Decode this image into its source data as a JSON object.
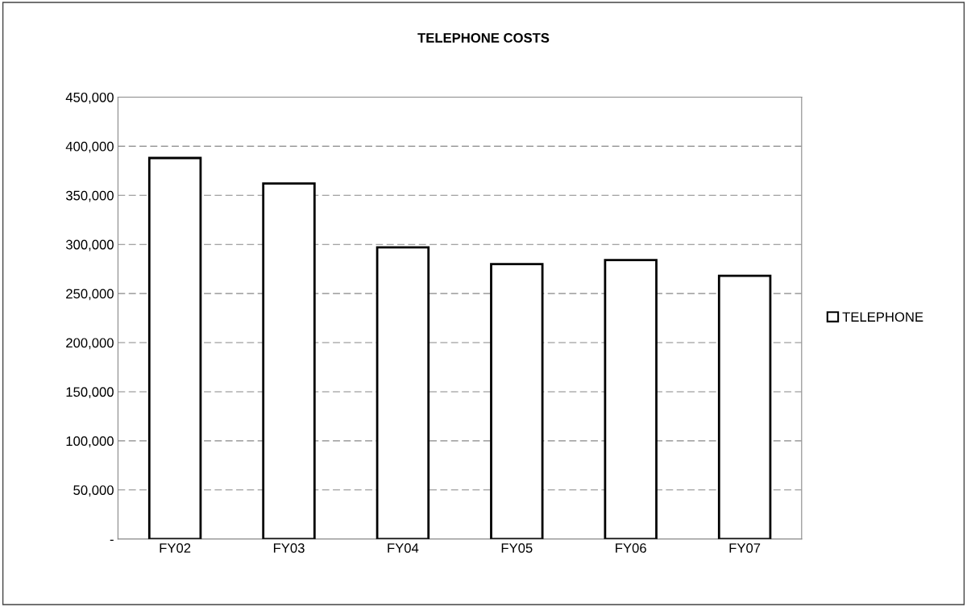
{
  "chart_data": {
    "type": "bar",
    "title": "TELEPHONE COSTS",
    "categories": [
      "FY02",
      "FY03",
      "FY04",
      "FY05",
      "FY06",
      "FY07"
    ],
    "series": [
      {
        "name": "TELEPHONE",
        "color": "#ffffff",
        "values": [
          388000,
          362000,
          297000,
          280000,
          284000,
          268000
        ]
      }
    ],
    "ylim": [
      0,
      450000
    ],
    "yticks": [
      {
        "value": 0,
        "label": "-"
      },
      {
        "value": 50000,
        "label": "50,000"
      },
      {
        "value": 100000,
        "label": "100,000"
      },
      {
        "value": 150000,
        "label": "150,000"
      },
      {
        "value": 200000,
        "label": "200,000"
      },
      {
        "value": 250000,
        "label": "250,000"
      },
      {
        "value": 300000,
        "label": "300,000"
      },
      {
        "value": 350000,
        "label": "350,000"
      },
      {
        "value": 400000,
        "label": "400,000"
      },
      {
        "value": 450000,
        "label": "450,000"
      }
    ],
    "grid": "y",
    "legend": "right"
  }
}
